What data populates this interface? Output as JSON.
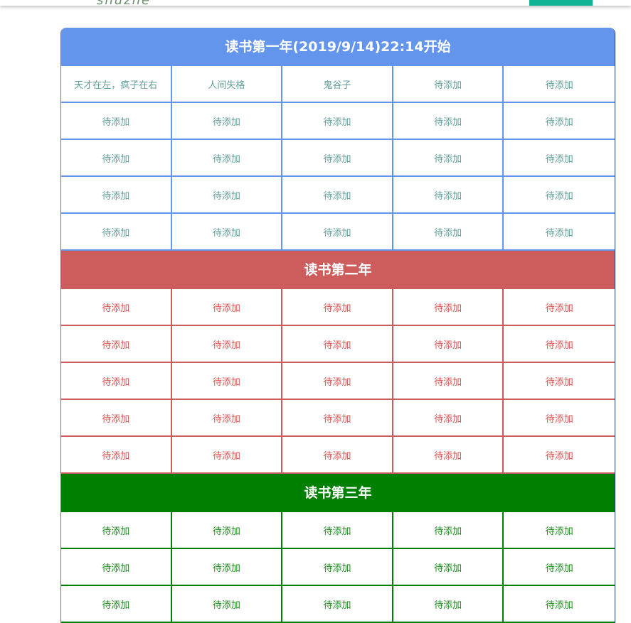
{
  "header": {
    "logo_text": "shuzhe"
  },
  "sections": [
    {
      "title": "读书第一年(2019/9/14)22:14开始",
      "color": "#6495ed",
      "text_color": "#5f9e9a",
      "rows": [
        [
          "天才在左，疯子在右",
          "人间失格",
          "鬼谷子",
          "待添加",
          "待添加"
        ],
        [
          "待添加",
          "待添加",
          "待添加",
          "待添加",
          "待添加"
        ],
        [
          "待添加",
          "待添加",
          "待添加",
          "待添加",
          "待添加"
        ],
        [
          "待添加",
          "待添加",
          "待添加",
          "待添加",
          "待添加"
        ],
        [
          "待添加",
          "待添加",
          "待添加",
          "待添加",
          "待添加"
        ]
      ]
    },
    {
      "title": "读书第二年",
      "color": "#cd5c5c",
      "text_color": "#d9534f",
      "rows": [
        [
          "待添加",
          "待添加",
          "待添加",
          "待添加",
          "待添加"
        ],
        [
          "待添加",
          "待添加",
          "待添加",
          "待添加",
          "待添加"
        ],
        [
          "待添加",
          "待添加",
          "待添加",
          "待添加",
          "待添加"
        ],
        [
          "待添加",
          "待添加",
          "待添加",
          "待添加",
          "待添加"
        ],
        [
          "待添加",
          "待添加",
          "待添加",
          "待添加",
          "待添加"
        ]
      ]
    },
    {
      "title": "读书第三年",
      "color": "#008000",
      "text_color": "#1a8a1a",
      "rows": [
        [
          "待添加",
          "待添加",
          "待添加",
          "待添加",
          "待添加"
        ],
        [
          "待添加",
          "待添加",
          "待添加",
          "待添加",
          "待添加"
        ],
        [
          "待添加",
          "待添加",
          "待添加",
          "待添加",
          "待添加"
        ]
      ]
    }
  ]
}
